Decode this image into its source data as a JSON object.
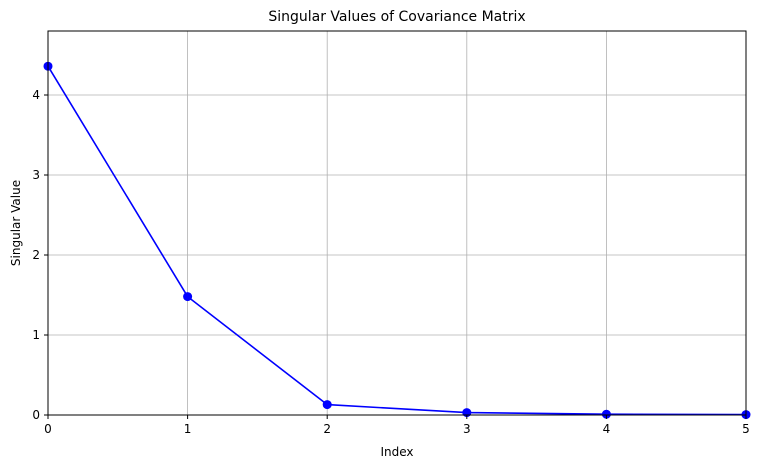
{
  "chart_data": {
    "type": "line",
    "title": "Singular Values of Covariance Matrix",
    "xlabel": "Index",
    "ylabel": "Singular Value",
    "x": [
      0,
      1,
      2,
      3,
      4,
      5
    ],
    "series": [
      {
        "values": [
          4.36,
          1.48,
          0.13,
          0.03,
          0.01,
          0.005
        ],
        "color": "#0000ff",
        "marker": "circle"
      }
    ],
    "xlim": [
      0,
      5
    ],
    "ylim": [
      0,
      4.8
    ],
    "xticks": [
      "0",
      "1",
      "2",
      "3",
      "4",
      "5"
    ],
    "yticks": [
      "0",
      "1",
      "2",
      "3",
      "4"
    ],
    "grid": true
  }
}
